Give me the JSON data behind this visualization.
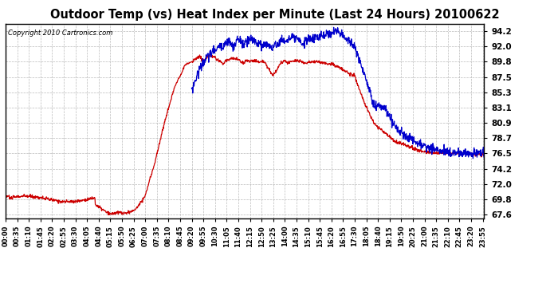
{
  "title": "Outdoor Temp (vs) Heat Index per Minute (Last 24 Hours) 20100622",
  "copyright": "Copyright 2010 Cartronics.com",
  "title_fontsize": 10.5,
  "yticks": [
    67.6,
    69.8,
    72.0,
    74.2,
    76.5,
    78.7,
    80.9,
    83.1,
    85.3,
    87.5,
    89.8,
    92.0,
    94.2
  ],
  "ylim": [
    67.0,
    95.2
  ],
  "bg_color": "#ffffff",
  "plot_bg_color": "#ffffff",
  "grid_color": "#aaaaaa",
  "red_color": "#cc0000",
  "blue_color": "#0000cc",
  "xtick_labels": [
    "00:00",
    "00:35",
    "01:10",
    "01:45",
    "02:20",
    "02:55",
    "03:30",
    "04:05",
    "04:40",
    "05:15",
    "05:50",
    "06:25",
    "07:00",
    "07:35",
    "08:10",
    "08:45",
    "09:20",
    "09:55",
    "10:30",
    "11:05",
    "11:40",
    "12:15",
    "12:50",
    "13:25",
    "14:00",
    "14:35",
    "15:10",
    "15:45",
    "16:20",
    "16:55",
    "17:30",
    "18:05",
    "18:40",
    "19:15",
    "19:50",
    "20:25",
    "21:00",
    "21:35",
    "22:10",
    "22:45",
    "23:20",
    "23:55"
  ]
}
